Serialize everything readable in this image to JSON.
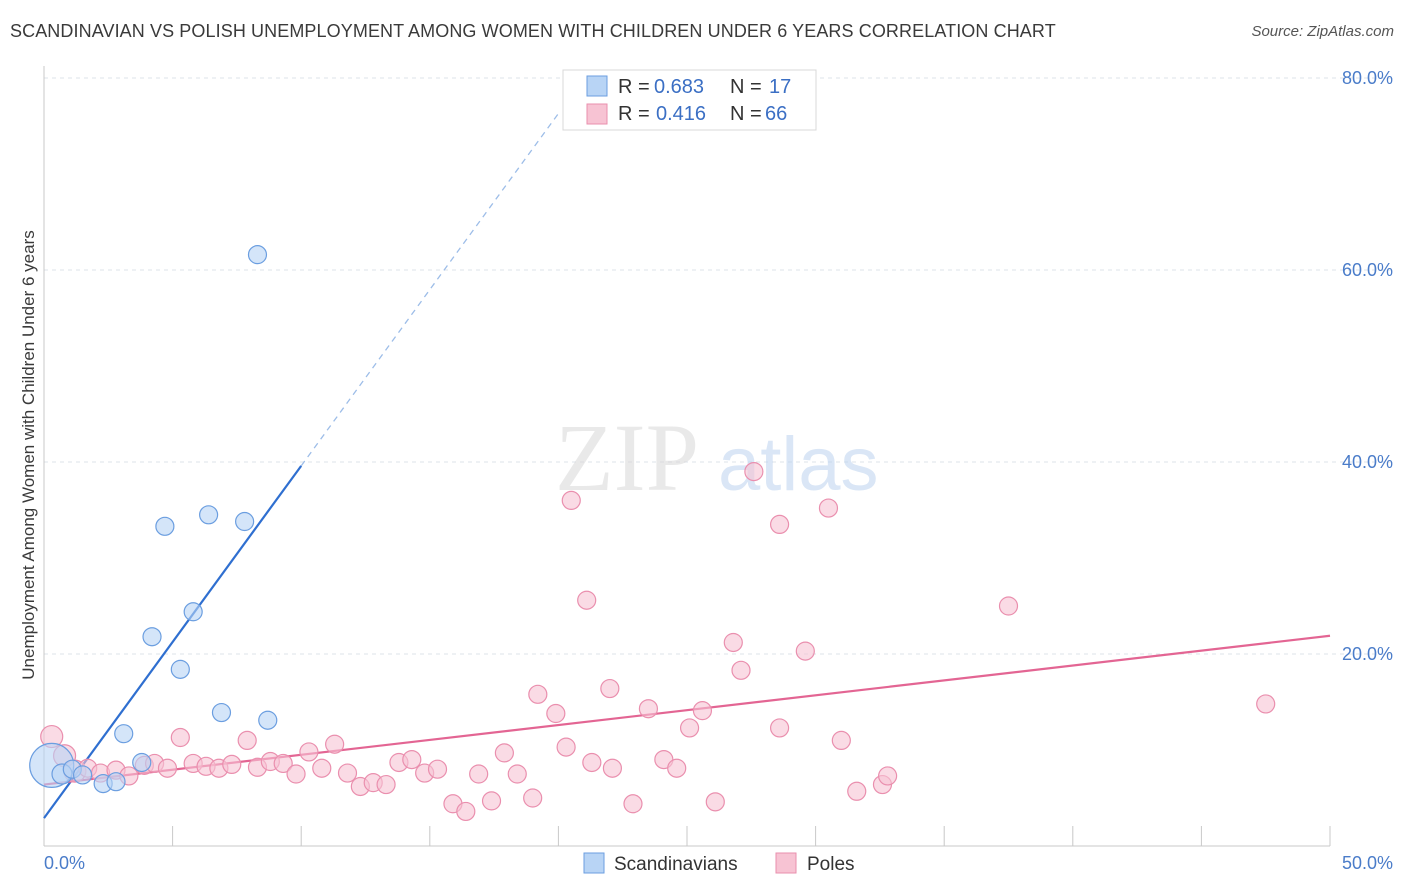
{
  "title": "SCANDINAVIAN VS POLISH UNEMPLOYMENT AMONG WOMEN WITH CHILDREN UNDER 6 YEARS CORRELATION CHART",
  "source": "Source: ZipAtlas.com",
  "watermark": {
    "zip": "ZIP",
    "atlas": "atlas"
  },
  "colors": {
    "blue_fill": "#b8d4f5",
    "blue_stroke": "#6b9ee0",
    "blue_line": "#2f6fd0",
    "pink_fill": "#f7c3d3",
    "pink_stroke": "#ea8fae",
    "pink_line": "#e36593",
    "grid": "#dde3ea",
    "tick_label": "#4a7cc9"
  },
  "legend": {
    "rows": [
      {
        "r_label": "R =",
        "r_value": "0.683",
        "n_label": "N =",
        "n_value": "17",
        "color": "blue"
      },
      {
        "r_label": "R =",
        "r_value": "0.416",
        "n_label": "N =",
        "n_value": "66",
        "color": "pink"
      }
    ]
  },
  "bottom_legend": [
    "Scandinavians",
    "Poles"
  ],
  "chart_data": {
    "type": "scatter",
    "title": "SCANDINAVIAN VS POLISH UNEMPLOYMENT AMONG WOMEN WITH CHILDREN UNDER 6 YEARS CORRELATION CHART",
    "xlabel": "",
    "ylabel": "Unemployment Among Women with Children Under 6 years",
    "xlim": [
      0,
      50
    ],
    "ylim": [
      0,
      80
    ],
    "x_tick_labels": [
      "0.0%",
      "50.0%"
    ],
    "y_ticks": [
      20,
      40,
      60,
      80
    ],
    "y_tick_labels": [
      "20.0%",
      "40.0%",
      "60.0%",
      "80.0%"
    ],
    "grid": true,
    "legend_position": "top-center",
    "series": [
      {
        "name": "Scandinavians",
        "color": "blue",
        "r": 0.683,
        "n": 17,
        "trend": {
          "x0": 0.0,
          "y0": 2.9,
          "x1": 10.0,
          "y1": 39.6,
          "dashed_to_x": 20.0,
          "dashed_to_y": 76.3
        },
        "points": [
          [
            0.3,
            8.4,
            22
          ],
          [
            0.7,
            7.5,
            10
          ],
          [
            1.1,
            8.0,
            9
          ],
          [
            1.5,
            7.4,
            9
          ],
          [
            2.3,
            6.5,
            9
          ],
          [
            2.8,
            6.7,
            9
          ],
          [
            3.1,
            11.7,
            9
          ],
          [
            3.8,
            8.7,
            9
          ],
          [
            4.2,
            21.8,
            9
          ],
          [
            4.7,
            33.3,
            9
          ],
          [
            5.3,
            18.4,
            9
          ],
          [
            5.8,
            24.4,
            9
          ],
          [
            6.4,
            34.5,
            9
          ],
          [
            6.9,
            13.9,
            9
          ],
          [
            7.8,
            33.8,
            9
          ],
          [
            8.3,
            61.6,
            9
          ],
          [
            8.7,
            13.1,
            9
          ]
        ]
      },
      {
        "name": "Poles",
        "color": "pink",
        "r": 0.416,
        "n": 66,
        "trend": {
          "x0": 0.0,
          "y0": 6.4,
          "x1": 50.0,
          "y1": 21.9
        },
        "points": [
          [
            0.3,
            11.4,
            11
          ],
          [
            0.8,
            9.4,
            11
          ],
          [
            1.2,
            7.8,
            11
          ],
          [
            1.7,
            8.1,
            9
          ],
          [
            2.2,
            7.6,
            9
          ],
          [
            2.8,
            7.9,
            9
          ],
          [
            3.3,
            7.3,
            9
          ],
          [
            3.9,
            8.4,
            9
          ],
          [
            4.3,
            8.6,
            9
          ],
          [
            4.8,
            8.1,
            9
          ],
          [
            5.3,
            11.3,
            9
          ],
          [
            5.8,
            8.6,
            9
          ],
          [
            6.3,
            8.3,
            9
          ],
          [
            6.8,
            8.1,
            9
          ],
          [
            7.3,
            8.5,
            9
          ],
          [
            7.9,
            11.0,
            9
          ],
          [
            8.3,
            8.2,
            9
          ],
          [
            8.8,
            8.8,
            9
          ],
          [
            9.3,
            8.6,
            9
          ],
          [
            9.8,
            7.5,
            9
          ],
          [
            10.3,
            9.8,
            9
          ],
          [
            10.8,
            8.1,
            9
          ],
          [
            11.3,
            10.6,
            9
          ],
          [
            11.8,
            7.6,
            9
          ],
          [
            12.3,
            6.2,
            9
          ],
          [
            12.8,
            6.6,
            9
          ],
          [
            13.3,
            6.4,
            9
          ],
          [
            13.8,
            8.7,
            9
          ],
          [
            14.3,
            9.0,
            9
          ],
          [
            14.8,
            7.6,
            9
          ],
          [
            15.3,
            8.0,
            9
          ],
          [
            15.9,
            4.4,
            9
          ],
          [
            16.4,
            3.6,
            9
          ],
          [
            16.9,
            7.5,
            9
          ],
          [
            17.4,
            4.7,
            9
          ],
          [
            17.9,
            9.7,
            9
          ],
          [
            18.4,
            7.5,
            9
          ],
          [
            19.0,
            5.0,
            9
          ],
          [
            19.2,
            15.8,
            9
          ],
          [
            19.9,
            13.8,
            9
          ],
          [
            20.3,
            10.3,
            9
          ],
          [
            20.5,
            36.0,
            9
          ],
          [
            21.3,
            8.7,
            9
          ],
          [
            21.1,
            25.6,
            9
          ],
          [
            22.1,
            8.1,
            9
          ],
          [
            22.0,
            16.4,
            9
          ],
          [
            22.9,
            4.4,
            9
          ],
          [
            23.5,
            14.3,
            9
          ],
          [
            24.1,
            9.0,
            9
          ],
          [
            24.6,
            8.1,
            9
          ],
          [
            25.1,
            12.3,
            9
          ],
          [
            25.6,
            14.1,
            9
          ],
          [
            26.1,
            4.6,
            9
          ],
          [
            26.8,
            21.2,
            9
          ],
          [
            27.1,
            18.3,
            9
          ],
          [
            27.6,
            39.0,
            9
          ],
          [
            28.6,
            33.5,
            9
          ],
          [
            28.6,
            12.3,
            9
          ],
          [
            29.6,
            20.3,
            9
          ],
          [
            30.5,
            35.2,
            9
          ],
          [
            31.0,
            11.0,
            9
          ],
          [
            31.6,
            5.7,
            9
          ],
          [
            32.6,
            6.4,
            9
          ],
          [
            32.8,
            7.3,
            9
          ],
          [
            37.5,
            25.0,
            9
          ],
          [
            47.5,
            14.8,
            9
          ]
        ]
      }
    ]
  }
}
